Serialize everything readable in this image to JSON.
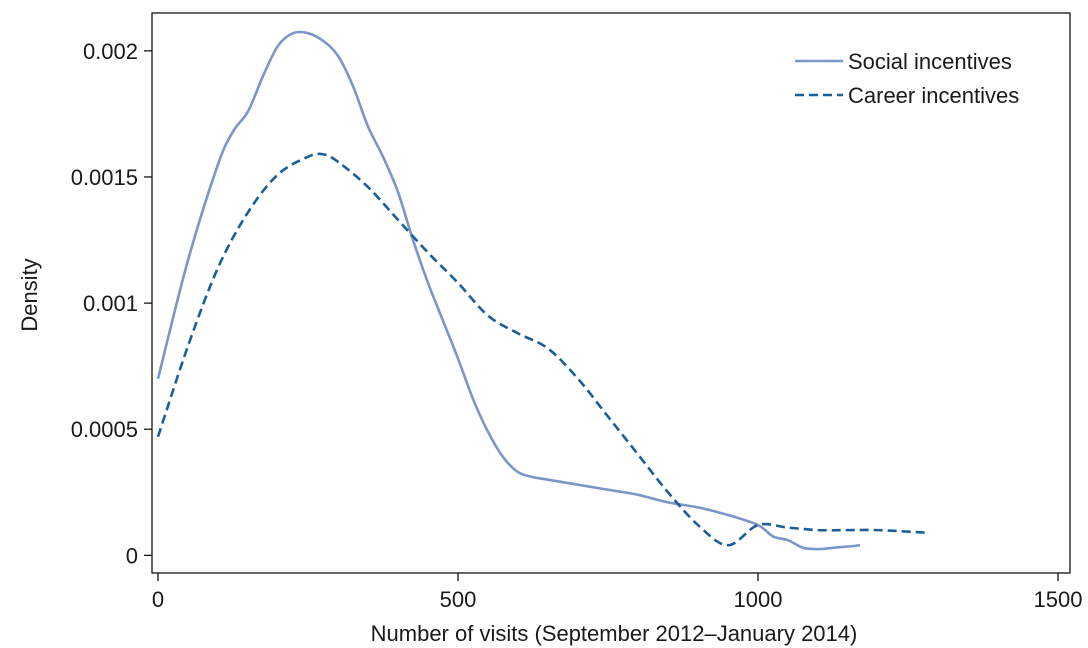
{
  "chart_data": {
    "type": "line",
    "title": "",
    "xlabel": "Number of visits (September 2012–January 2014)",
    "ylabel": "Density",
    "xlim": [
      -10,
      1520
    ],
    "ylim": [
      -7e-05,
      0.00215
    ],
    "x_ticks": [
      0,
      500,
      1000,
      1500
    ],
    "x_tick_labels": [
      "0",
      "500",
      "1000",
      "1500"
    ],
    "y_ticks": [
      0,
      0.0005,
      0.001,
      0.0015,
      0.002
    ],
    "y_tick_labels": [
      "0",
      "0.0005",
      "0.001",
      "0.0015",
      "0.002"
    ],
    "grid": false,
    "legend_position": "top-right",
    "series": [
      {
        "name": "Social incentives",
        "color": "#7b96c9",
        "dash": "solid",
        "x": [
          0,
          50,
          100,
          125,
          150,
          175,
          200,
          225,
          250,
          275,
          300,
          325,
          350,
          375,
          400,
          425,
          450,
          475,
          500,
          525,
          550,
          575,
          600,
          625,
          650,
          675,
          700,
          750,
          800,
          850,
          900,
          950,
          1000,
          1025,
          1050,
          1075,
          1100,
          1125,
          1150,
          1170
        ],
        "values": [
          0.0007,
          0.00117,
          0.00155,
          0.00168,
          0.00176,
          0.0019,
          0.00202,
          0.00207,
          0.00207,
          0.00204,
          0.00198,
          0.00186,
          0.0017,
          0.00158,
          0.00144,
          0.00125,
          0.00108,
          0.00093,
          0.00078,
          0.00062,
          0.00049,
          0.00039,
          0.00033,
          0.00031,
          0.0003,
          0.00029,
          0.00028,
          0.00026,
          0.00024,
          0.00021,
          0.00019,
          0.00016,
          0.00012,
          7.5e-05,
          6e-05,
          3e-05,
          2.5e-05,
          3e-05,
          3.5e-05,
          4e-05
        ]
      },
      {
        "name": "Career incentives",
        "color": "#1a5e9a",
        "dash": "dashed",
        "x": [
          0,
          50,
          100,
          150,
          200,
          250,
          275,
          300,
          350,
          400,
          450,
          500,
          550,
          600,
          650,
          700,
          750,
          800,
          850,
          900,
          950,
          1000,
          1050,
          1100,
          1150,
          1200,
          1280
        ],
        "values": [
          0.00047,
          0.00083,
          0.00114,
          0.00136,
          0.00151,
          0.00158,
          0.00159,
          0.00156,
          0.00146,
          0.00133,
          0.0012,
          0.00108,
          0.00095,
          0.00088,
          0.00082,
          0.0007,
          0.00055,
          0.0004,
          0.00025,
          0.00012,
          4e-05,
          0.00012,
          0.00011,
          0.0001,
          0.0001,
          0.0001,
          9e-05
        ]
      }
    ]
  }
}
